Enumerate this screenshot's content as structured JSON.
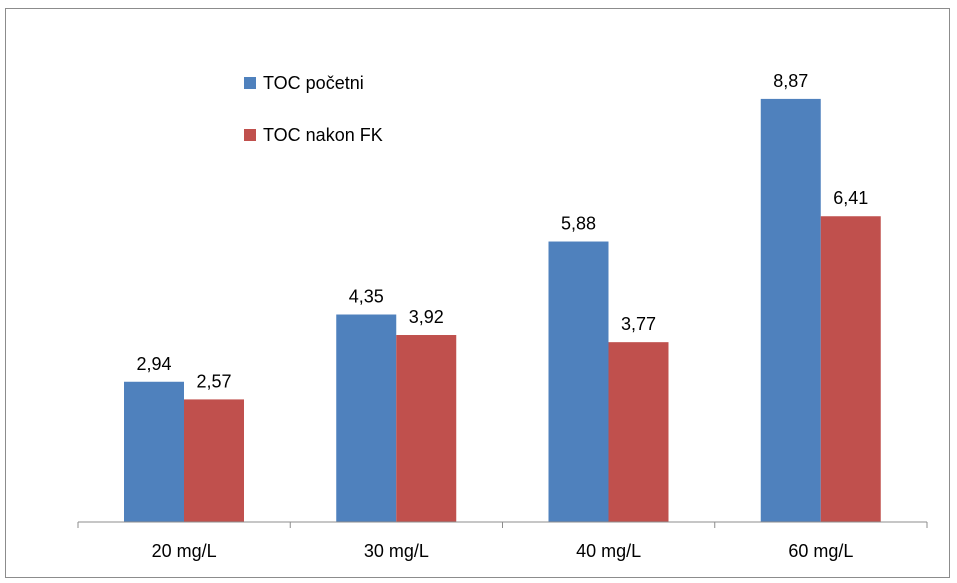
{
  "chart_data": {
    "type": "bar",
    "categories": [
      "20 mg/L",
      "30 mg/L",
      "40 mg/L",
      "60 mg/L"
    ],
    "series": [
      {
        "name": "TOC početni",
        "values": [
          2.94,
          4.35,
          5.88,
          8.87
        ],
        "labels": [
          "2,94",
          "4,35",
          "5,88",
          "8,87"
        ]
      },
      {
        "name": "TOC nakon FK",
        "values": [
          2.57,
          3.92,
          3.77,
          6.41
        ],
        "labels": [
          "2,57",
          "3,92",
          "3,77",
          "6,41"
        ]
      }
    ],
    "ylim": [
      0,
      10
    ],
    "grid": false,
    "legend_position": "top-left",
    "colors": {
      "TOC početni": "#4f81bd",
      "TOC nakon FK": "#c0504d"
    }
  }
}
